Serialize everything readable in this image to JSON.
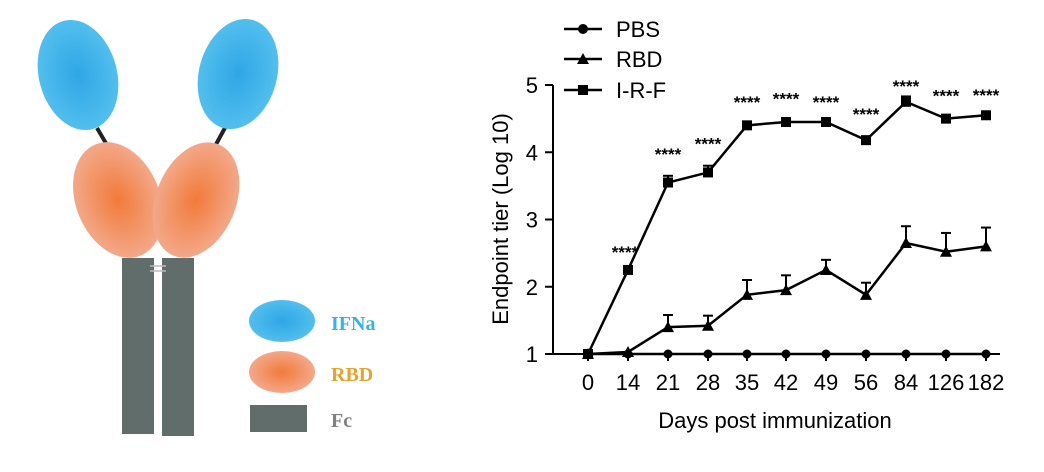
{
  "diagram": {
    "legend": [
      {
        "label": "IFNa",
        "color": "#3bb2e8"
      },
      {
        "label": "RBD",
        "color": "#f08a5a",
        "text_color": "#e6a330"
      },
      {
        "label": "Fc",
        "color": "#616d6b",
        "text_color": "#808080"
      }
    ],
    "colors": {
      "ifna": "#3bb2e8",
      "rbd": "#f08a5a",
      "fc": "#616d6b",
      "ifna_label": "#33b3e6"
    }
  },
  "chart_data": {
    "type": "line",
    "title": "",
    "xlabel": "Days post immunization",
    "ylabel": "Endpoint tier (Log 10)",
    "categories": [
      "0",
      "14",
      "21",
      "28",
      "35",
      "42",
      "49",
      "56",
      "84",
      "126",
      "182"
    ],
    "ylim": [
      1,
      5
    ],
    "yticks": [
      "1",
      "2",
      "3",
      "4",
      "5"
    ],
    "legend_position": "top-left",
    "grid": false,
    "series": [
      {
        "name": "PBS",
        "marker": "circle",
        "values": [
          1,
          1,
          1,
          1,
          1,
          1,
          1,
          1,
          1,
          1,
          1
        ],
        "errors": [
          0,
          0,
          0,
          0,
          0,
          0,
          0,
          0,
          0,
          0,
          0
        ]
      },
      {
        "name": "RBD",
        "marker": "triangle",
        "values": [
          1,
          1.03,
          1.4,
          1.42,
          1.88,
          1.95,
          2.25,
          1.88,
          2.65,
          2.52,
          2.6
        ],
        "errors": [
          0,
          0,
          0.18,
          0.15,
          0.22,
          0.22,
          0.15,
          0.18,
          0.25,
          0.28,
          0.28
        ]
      },
      {
        "name": "I-R-F",
        "marker": "square",
        "values": [
          1,
          2.25,
          3.55,
          3.7,
          4.4,
          4.45,
          4.45,
          4.18,
          4.75,
          4.5,
          4.55
        ],
        "errors": [
          0,
          0,
          0.1,
          0.1,
          0.05,
          0.05,
          0.03,
          0.03,
          0.08,
          0.05,
          0.03
        ]
      }
    ],
    "annotations": [
      "",
      "****",
      "****",
      "****",
      "****",
      "****",
      "****",
      "****",
      "****",
      "****",
      "****"
    ]
  }
}
